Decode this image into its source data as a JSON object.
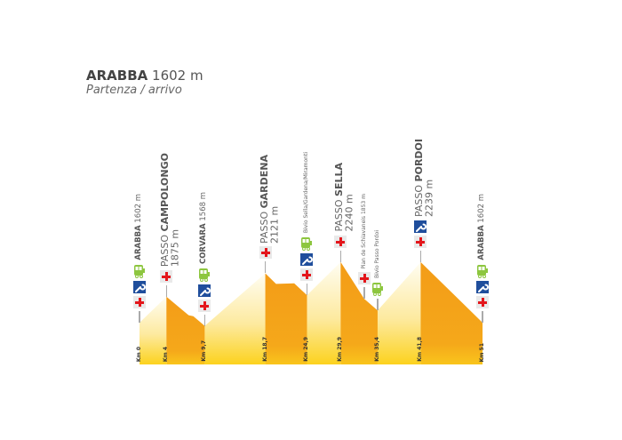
{
  "header": {
    "title_bold": "ARABBA",
    "title_rest": "1602 m",
    "subtitle": "Partenza / arrivo"
  },
  "colors": {
    "descent": "#f39c18",
    "ascent_top": "#fffdf2",
    "ascent_bottom": "#fcd21e",
    "cross": "#e3161b",
    "wrench_bg": "#1f4e9c",
    "bus": "#8dc63f"
  },
  "chart_data": {
    "type": "area",
    "xlabel": "",
    "ylabel": "",
    "profile": [
      {
        "km": 0,
        "elev": 1602
      },
      {
        "km": 4,
        "elev": 1875
      },
      {
        "km": 7.3,
        "elev": 1680
      },
      {
        "km": 8,
        "elev": 1670
      },
      {
        "km": 9.7,
        "elev": 1568
      },
      {
        "km": 18.7,
        "elev": 2121
      },
      {
        "km": 20.3,
        "elev": 2010
      },
      {
        "km": 23,
        "elev": 2015
      },
      {
        "km": 24.9,
        "elev": 1890
      },
      {
        "km": 29.9,
        "elev": 2240
      },
      {
        "km": 33.4,
        "elev": 1853
      },
      {
        "km": 35.4,
        "elev": 1730
      },
      {
        "km": 41.8,
        "elev": 2239
      },
      {
        "km": 51,
        "elev": 1602
      }
    ],
    "descents": [
      [
        4,
        9.7
      ],
      [
        18.7,
        24.9
      ],
      [
        29.9,
        35.4
      ],
      [
        41.8,
        51
      ]
    ],
    "km_labels": [
      {
        "km": 0,
        "label": "Km 0"
      },
      {
        "km": 4,
        "label": "Km 4"
      },
      {
        "km": 9.7,
        "label": "Km 9,7"
      },
      {
        "km": 18.7,
        "label": "Km 18,7"
      },
      {
        "km": 24.9,
        "label": "Km 24,9"
      },
      {
        "km": 29.9,
        "label": "Km 29,9"
      },
      {
        "km": 35.4,
        "label": "Km 35,4"
      },
      {
        "km": 41.8,
        "label": "Km 41,8"
      },
      {
        "km": 51,
        "label": "Km 51"
      }
    ]
  },
  "stops": [
    {
      "km": 0,
      "elev": 1602,
      "style": "md",
      "line1_pre": "",
      "line1_bold": "ARABBA",
      "line1_post": " 1602 m",
      "line2": "",
      "icons": [
        "bus",
        "wrench",
        "cross"
      ]
    },
    {
      "km": 4,
      "elev": 1875,
      "style": "lg",
      "line1_pre": "PASSO ",
      "line1_bold": "CAMPOLONGO",
      "line1_post": "",
      "line2": "1875 m",
      "icons": [
        "cross"
      ]
    },
    {
      "km": 9.7,
      "elev": 1568,
      "style": "md",
      "line1_pre": "",
      "line1_bold": "CORVARA",
      "line1_post": " 1568 m",
      "line2": "",
      "icons": [
        "bus",
        "wrench",
        "cross"
      ]
    },
    {
      "km": 18.7,
      "elev": 2121,
      "style": "lg",
      "line1_pre": "PASSO ",
      "line1_bold": "GARDENA",
      "line1_post": "",
      "line2": "2121 m",
      "icons": [
        "cross"
      ]
    },
    {
      "km": 24.9,
      "elev": 1890,
      "style": "sm",
      "line1_pre": "Bivio Sella/Gardena/Miramonti",
      "line1_bold": "",
      "line1_post": "",
      "line2": "",
      "icons": [
        "bus",
        "wrench",
        "cross"
      ]
    },
    {
      "km": 29.9,
      "elev": 2240,
      "style": "lg",
      "line1_pre": "PASSO ",
      "line1_bold": "SELLA",
      "line1_post": "",
      "line2": "2240 m",
      "icons": [
        "cross"
      ]
    },
    {
      "km": 33.4,
      "elev": 1853,
      "style": "sm",
      "line1_pre": "Pian de Schiavaneis 1853 m",
      "line1_bold": "",
      "line1_post": "",
      "line2": "",
      "icons": [
        "cross"
      ]
    },
    {
      "km": 35.4,
      "elev": 1730,
      "style": "sm",
      "line1_pre": "Bivio Passo Pordoi",
      "line1_bold": "",
      "line1_post": "",
      "line2": "",
      "icons": [
        "bus"
      ]
    },
    {
      "km": 41.8,
      "elev": 2239,
      "style": "lg",
      "line1_pre": "PASSO ",
      "line1_bold": "PORDOI",
      "line1_post": "",
      "line2": "2239 m",
      "icons": [
        "wrench",
        "cross"
      ]
    },
    {
      "km": 51,
      "elev": 1602,
      "style": "md",
      "line1_pre": "",
      "line1_bold": "ARABBA",
      "line1_post": " 1602 m",
      "line2": "",
      "icons": [
        "bus",
        "wrench",
        "cross"
      ]
    }
  ]
}
